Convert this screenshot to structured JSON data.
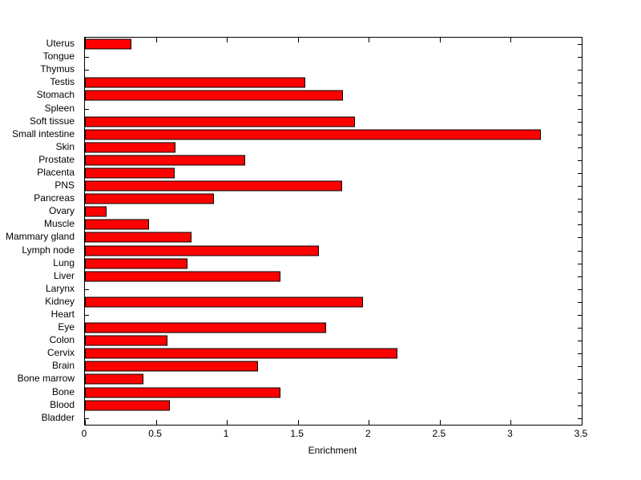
{
  "chart_data": {
    "type": "bar",
    "orientation": "horizontal",
    "title": "",
    "xlabel": "Enrichment",
    "ylabel": "",
    "xlim": [
      0,
      3.5
    ],
    "xticks": [
      0,
      0.5,
      1,
      1.5,
      2,
      2.5,
      3,
      3.5
    ],
    "xtick_labels": [
      "0",
      "0.5",
      "1",
      "1.5",
      "2",
      "2.5",
      "3",
      "3.5"
    ],
    "grid": false,
    "legend": "none",
    "categories": [
      "Uterus",
      "Tongue",
      "Thymus",
      "Testis",
      "Stomach",
      "Spleen",
      "Soft tissue",
      "Small intestine",
      "Skin",
      "Prostate",
      "Placenta",
      "PNS",
      "Pancreas",
      "Ovary",
      "Muscle",
      "Mammary gland",
      "Lymph node",
      "Lung",
      "Liver",
      "Larynx",
      "Kidney",
      "Heart",
      "Eye",
      "Colon",
      "Cervix",
      "Brain",
      "Bone marrow",
      "Bone",
      "Blood",
      "Bladder"
    ],
    "values": [
      0.33,
      0,
      0,
      1.55,
      1.82,
      0,
      1.9,
      3.21,
      0.64,
      1.13,
      0.63,
      1.81,
      0.91,
      0.15,
      0.45,
      0.75,
      1.65,
      0.72,
      1.38,
      0,
      1.96,
      0,
      1.7,
      0.58,
      2.2,
      1.22,
      0.41,
      1.38,
      0.6,
      0
    ],
    "bar_color": "#ff0000",
    "bar_edge_color": "#000000",
    "axis_color": "#000000",
    "background_color": "#ffffff"
  }
}
